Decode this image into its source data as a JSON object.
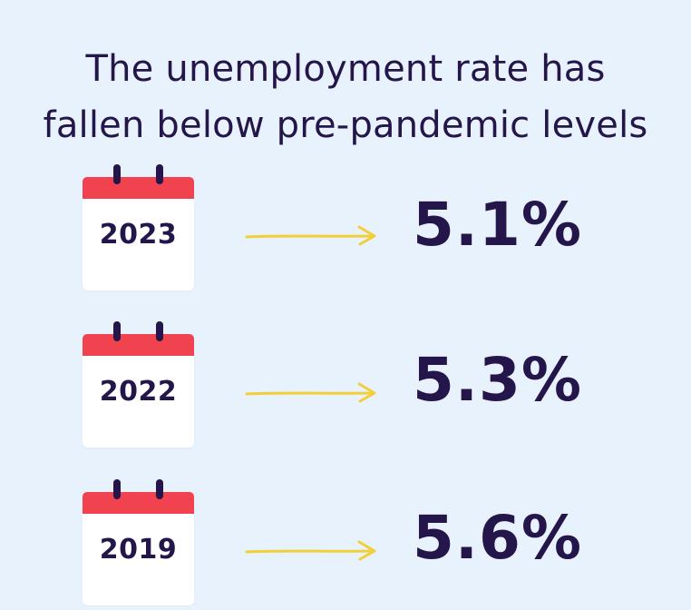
{
  "title": {
    "line1": "The unemployment rate has",
    "line2": "fallen below pre-pandemic levels"
  },
  "rows": [
    {
      "year": "2023",
      "value": "5.1%"
    },
    {
      "year": "2022",
      "value": "5.3%"
    },
    {
      "year": "2019",
      "value": "5.6%"
    }
  ],
  "colors": {
    "background": "#e8f2fc",
    "text": "#24154a",
    "calendar_header": "#f0434f",
    "arrow": "#f2cf38"
  }
}
